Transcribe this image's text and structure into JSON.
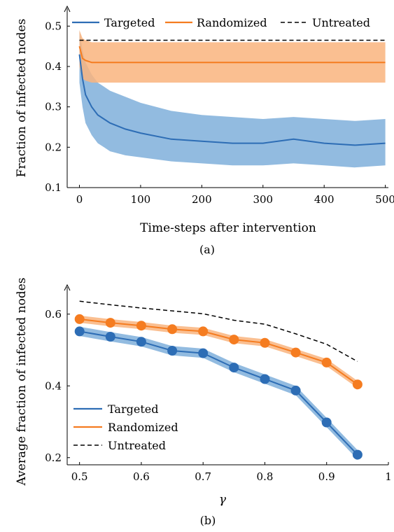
{
  "chart_data": [
    {
      "type": "line",
      "caption": "(a)",
      "xlabel": "Time-steps after intervention",
      "ylabel": "Fraction of infected nodes",
      "xlim": [
        -20,
        505
      ],
      "ylim": [
        0.1,
        0.53
      ],
      "xticks": [
        0,
        100,
        200,
        300,
        400,
        500
      ],
      "yticks": [
        0.1,
        0.2,
        0.3,
        0.4,
        0.5
      ],
      "xtick_labels": [
        "0",
        "100",
        "200",
        "300",
        "400",
        "500"
      ],
      "ytick_labels": [
        "0.1",
        "0.2",
        "0.3",
        "0.4",
        "0.5"
      ],
      "legend_position": "top",
      "legend": [
        "Targeted",
        "Randomized",
        "Untreated"
      ],
      "series": [
        {
          "name": "Targeted",
          "color": "#2d6db5",
          "band_color": "#7fafda",
          "x": [
            0,
            5,
            10,
            20,
            30,
            40,
            50,
            75,
            100,
            150,
            200,
            250,
            300,
            350,
            400,
            450,
            500
          ],
          "mean": [
            0.43,
            0.37,
            0.33,
            0.3,
            0.28,
            0.27,
            0.26,
            0.245,
            0.235,
            0.22,
            0.215,
            0.21,
            0.21,
            0.22,
            0.21,
            0.205,
            0.21
          ],
          "upper": [
            0.49,
            0.44,
            0.41,
            0.38,
            0.36,
            0.35,
            0.34,
            0.325,
            0.31,
            0.29,
            0.28,
            0.275,
            0.27,
            0.275,
            0.27,
            0.265,
            0.27
          ],
          "lower": [
            0.36,
            0.3,
            0.26,
            0.23,
            0.21,
            0.2,
            0.19,
            0.18,
            0.175,
            0.165,
            0.16,
            0.155,
            0.155,
            0.16,
            0.155,
            0.15,
            0.155
          ]
        },
        {
          "name": "Randomized",
          "color": "#f57c20",
          "band_color": "#f9b47e",
          "x": [
            0,
            5,
            10,
            20,
            30,
            50,
            100,
            150,
            200,
            250,
            300,
            350,
            400,
            450,
            500
          ],
          "mean": [
            0.45,
            0.42,
            0.415,
            0.41,
            0.41,
            0.41,
            0.41,
            0.41,
            0.41,
            0.41,
            0.41,
            0.41,
            0.41,
            0.41,
            0.41
          ],
          "upper": [
            0.49,
            0.47,
            0.465,
            0.46,
            0.46,
            0.46,
            0.46,
            0.46,
            0.46,
            0.46,
            0.46,
            0.46,
            0.46,
            0.46,
            0.46
          ],
          "lower": [
            0.4,
            0.37,
            0.365,
            0.36,
            0.36,
            0.36,
            0.36,
            0.36,
            0.36,
            0.36,
            0.36,
            0.36,
            0.36,
            0.36,
            0.36
          ]
        },
        {
          "name": "Untreated",
          "color": "#000000",
          "dashed": true,
          "x": [
            0,
            500
          ],
          "mean": [
            0.465,
            0.465
          ]
        }
      ]
    },
    {
      "type": "line",
      "caption": "(b)",
      "xlabel": "γ",
      "ylabel": "Average fraction of infected nodes",
      "xlim": [
        0.48,
        1.0
      ],
      "ylim": [
        0.18,
        0.66
      ],
      "xticks": [
        0.5,
        0.6,
        0.7,
        0.8,
        0.9,
        1.0
      ],
      "yticks": [
        0.2,
        0.4,
        0.6
      ],
      "xtick_labels": [
        "0.5",
        "0.6",
        "0.7",
        "0.8",
        "0.9",
        "1"
      ],
      "ytick_labels": [
        "0.2",
        "0.4",
        "0.6"
      ],
      "legend_position": "bottom-left",
      "legend": [
        "Targeted",
        "Randomized",
        "Untreated"
      ],
      "x": [
        0.5,
        0.55,
        0.6,
        0.65,
        0.7,
        0.75,
        0.8,
        0.85,
        0.9,
        0.95
      ],
      "series": [
        {
          "name": "Targeted",
          "color": "#2d6db5",
          "band_color": "#7fafda",
          "markers": true,
          "values": [
            0.552,
            0.537,
            0.523,
            0.498,
            0.491,
            0.451,
            0.419,
            0.387,
            0.298,
            0.208
          ],
          "band": 0.013
        },
        {
          "name": "Randomized",
          "color": "#f57c20",
          "band_color": "#f9b47e",
          "markers": true,
          "values": [
            0.586,
            0.576,
            0.568,
            0.558,
            0.552,
            0.529,
            0.52,
            0.493,
            0.465,
            0.404
          ],
          "band": 0.01
        },
        {
          "name": "Untreated",
          "color": "#000000",
          "dashed": true,
          "values": [
            0.636,
            0.626,
            0.617,
            0.609,
            0.601,
            0.583,
            0.572,
            0.545,
            0.516,
            0.468
          ]
        }
      ]
    }
  ]
}
